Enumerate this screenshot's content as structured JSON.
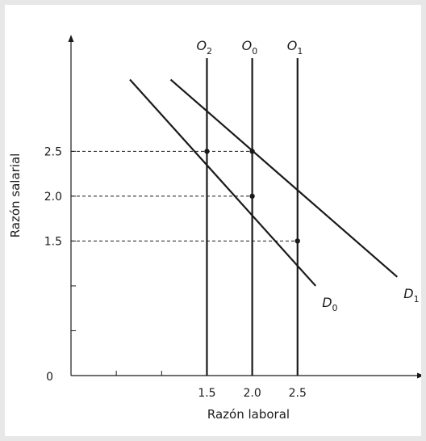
{
  "chart_data": {
    "type": "line",
    "xlabel": "Razón laboral",
    "ylabel": "Razón salarial",
    "origin_label": "0",
    "x_ticks": [
      0.5,
      1.0,
      1.5,
      2.0,
      2.5
    ],
    "x_tick_labels": [
      "",
      "",
      "1.5",
      "2.0",
      "2.5"
    ],
    "y_ticks": [
      0.5,
      1.0,
      1.5,
      2.0,
      2.5
    ],
    "y_tick_labels": [
      "",
      "",
      "1.5",
      "2.0",
      "2.5"
    ],
    "xlim": [
      0,
      3.9
    ],
    "ylim": [
      0,
      3.8
    ],
    "demand_curves": [
      {
        "name": "D",
        "sub": "0",
        "points": [
          [
            0.65,
            3.3
          ],
          [
            2.7,
            1.0
          ]
        ]
      },
      {
        "name": "D",
        "sub": "1",
        "points": [
          [
            1.1,
            3.3
          ],
          [
            3.6,
            1.1
          ]
        ]
      }
    ],
    "supply_lines": [
      {
        "name": "O",
        "sub": "2",
        "x": 1.5
      },
      {
        "name": "O",
        "sub": "0",
        "x": 2.0
      },
      {
        "name": "O",
        "sub": "1",
        "x": 2.5
      }
    ],
    "equilibrium_points": [
      {
        "x": 1.5,
        "y": 2.5
      },
      {
        "x": 2.0,
        "y": 2.5
      },
      {
        "x": 2.0,
        "y": 2.0
      },
      {
        "x": 2.5,
        "y": 1.5
      }
    ],
    "colors": {
      "line": "#1a1a1a",
      "background": "#e7e7e7",
      "panel": "#ffffff"
    },
    "grid": false
  }
}
